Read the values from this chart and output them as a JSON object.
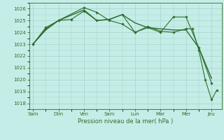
{
  "xlabel": "Pression niveau de la mer( hPa )",
  "background_color": "#c5ede7",
  "grid_color": "#9eccc5",
  "line_color": "#2d6e2d",
  "ylim": [
    1017.5,
    1026.5
  ],
  "yticks": [
    1018,
    1019,
    1020,
    1021,
    1022,
    1023,
    1024,
    1025,
    1026
  ],
  "xtick_labels": [
    "Sam",
    "Dim",
    "Ven",
    "Sam",
    "Lun",
    "Mar",
    "Mer",
    "Jeu"
  ],
  "xtick_positions": [
    0,
    1,
    2,
    3,
    4,
    5,
    6,
    7
  ],
  "xlim": [
    -0.15,
    7.4
  ],
  "series": [
    {
      "x": [
        0,
        0.5,
        1.0,
        2.0,
        2.5,
        3.0,
        3.5,
        4.0,
        4.5,
        5.0,
        5.5,
        6.0,
        6.5,
        7.0
      ],
      "y": [
        1023.0,
        1024.2,
        1025.0,
        1025.9,
        1025.0,
        1025.1,
        1025.5,
        1024.8,
        1024.4,
        1024.3,
        1024.2,
        1024.2,
        1022.7,
        1020.1
      ],
      "marker": false,
      "lw": 1.0
    },
    {
      "x": [
        0,
        0.5,
        1.0,
        2.0,
        2.5,
        3.0,
        3.5,
        4.0,
        4.5,
        5.0,
        5.5,
        6.0,
        6.5,
        7.0
      ],
      "y": [
        1023.0,
        1024.4,
        1025.0,
        1026.1,
        1025.7,
        1025.0,
        1024.7,
        1024.0,
        1024.4,
        1024.0,
        1025.3,
        1025.3,
        1022.7,
        1019.7
      ],
      "marker": true,
      "lw": 0.8
    },
    {
      "x": [
        0,
        0.5,
        1.0,
        1.5,
        2.0,
        2.5,
        3.0,
        3.5,
        4.0,
        4.5,
        5.0,
        5.5,
        6.0,
        6.25,
        6.5,
        6.75,
        7.0,
        7.2
      ],
      "y": [
        1023.0,
        1024.3,
        1025.0,
        1025.1,
        1025.8,
        1025.0,
        1025.1,
        1025.5,
        1024.0,
        1024.5,
        1024.1,
        1024.0,
        1024.3,
        1024.3,
        1022.5,
        1020.0,
        1018.3,
        1019.1
      ],
      "marker": true,
      "lw": 0.8
    }
  ]
}
